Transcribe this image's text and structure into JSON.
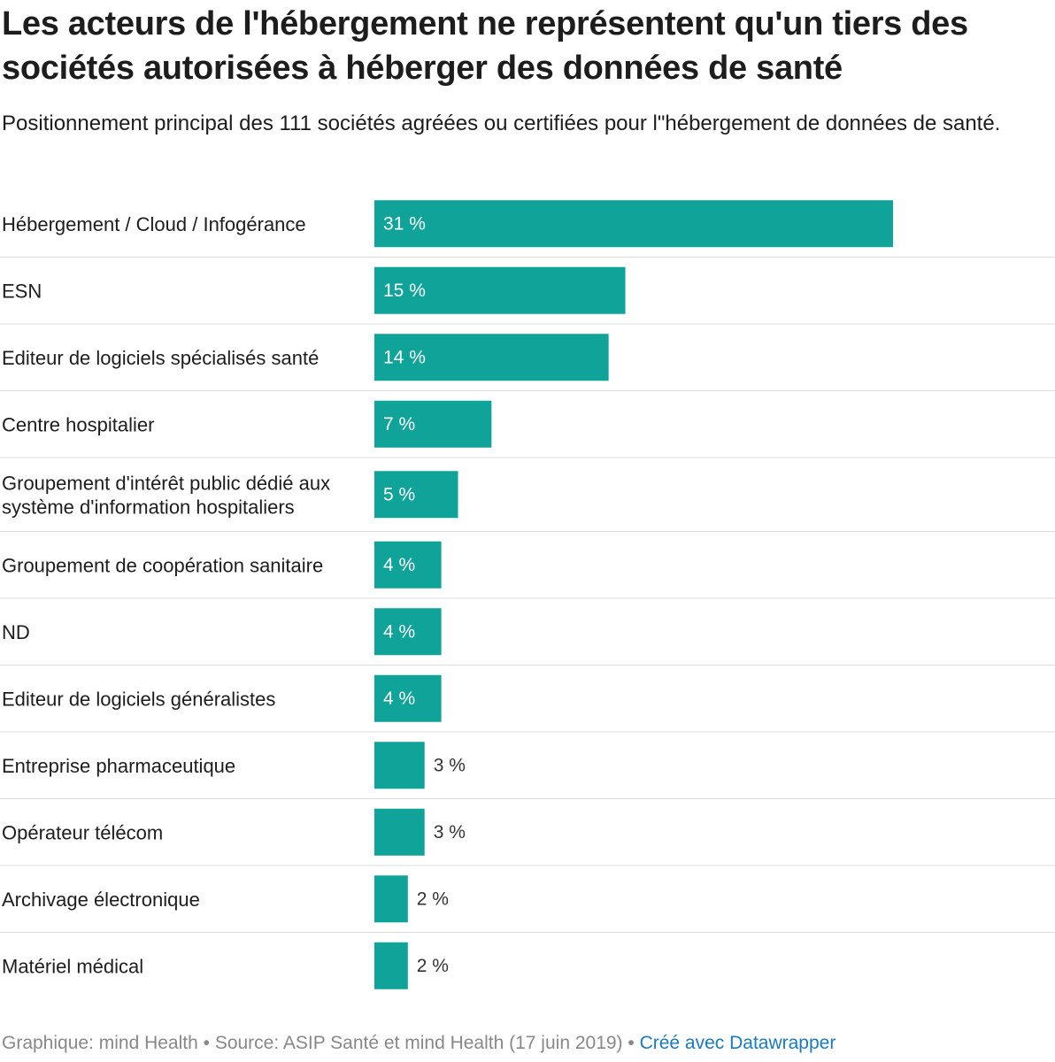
{
  "header": {
    "title": "Les acteurs de l'hébergement ne représentent qu'un tiers des sociétés autorisées à héberger des données de santé",
    "subtitle": "Positionnement principal des 111 sociétés agréées ou certifiées pour l\"hébergement de données de santé."
  },
  "footer": {
    "credit": "Graphique: mind Health • Source: ASIP Santé et mind Health (17 juin 2019) • ",
    "link": "Créé avec Datawrapper"
  },
  "colors": {
    "bar": "#0fa39a",
    "separator": "#dddddd",
    "label_inside": "#ffffff",
    "label_outside": "#333333"
  },
  "chart_data": {
    "type": "bar",
    "orientation": "horizontal",
    "unit_suffix": " %",
    "categories": [
      [
        "Hébergement / Cloud / Infogérance"
      ],
      [
        "ESN"
      ],
      [
        "Editeur de logiciels spécialisés santé"
      ],
      [
        "Centre hospitalier"
      ],
      [
        "Groupement d'intérêt public dédié aux",
        "système d'information hospitaliers"
      ],
      [
        "Groupement de coopération sanitaire"
      ],
      [
        "ND"
      ],
      [
        "Editeur de logiciels généralistes"
      ],
      [
        "Entreprise pharmaceutique"
      ],
      [
        "Opérateur télécom"
      ],
      [
        "Archivage électronique"
      ],
      [
        "Matériel médical"
      ]
    ],
    "values": [
      31,
      15,
      14,
      7,
      5,
      4,
      4,
      4,
      3,
      3,
      2,
      2
    ],
    "value_labels": [
      "31 %",
      "15 %",
      "14 %",
      "7 %",
      "5 %",
      "4 %",
      "4 %",
      "4 %",
      "3 %",
      "3 %",
      "2 %",
      "2 %"
    ],
    "xlim": [
      0,
      40
    ],
    "grid": false,
    "legend": "none"
  }
}
